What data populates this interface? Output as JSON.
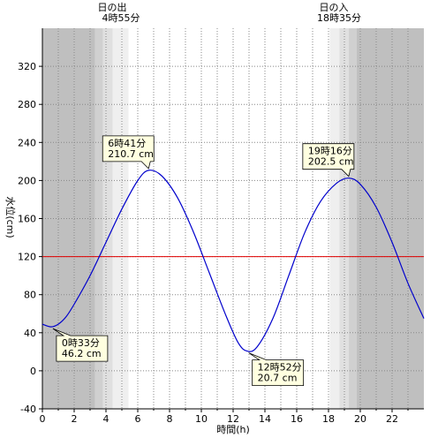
{
  "chart_data": {
    "type": "line",
    "ylabel": "水位(cm)",
    "xlabel": "時間(h)",
    "xlim": [
      0,
      24
    ],
    "ylim": [
      -40,
      360
    ],
    "x_ticks": [
      "0",
      "2",
      "4",
      "6",
      "8",
      "10",
      "12",
      "14",
      "16",
      "18",
      "20",
      "22"
    ],
    "y_ticks": [
      "-40",
      "0",
      "40",
      "80",
      "120",
      "160",
      "200",
      "240",
      "280",
      "320"
    ],
    "grid": true,
    "reference_line": {
      "value": 120,
      "color": "#e00000"
    },
    "series": [
      {
        "color": "#0000cc",
        "x": [
          0,
          0.55,
          1,
          1.5,
          2,
          3,
          4,
          5,
          6,
          6.68,
          7.5,
          8.5,
          9.5,
          10.5,
          11.5,
          12.3,
          12.87,
          13.5,
          14.5,
          15.5,
          16.5,
          17.5,
          18.5,
          19.27,
          20,
          21,
          22,
          23,
          24
        ],
        "y": [
          49,
          46.2,
          49,
          57,
          70,
          100,
          135,
          170,
          200,
          210.7,
          205,
          182,
          146,
          103,
          60,
          30,
          20.7,
          25,
          55,
          100,
          145,
          178,
          197,
          202.5,
          196,
          172,
          135,
          92,
          55
        ]
      }
    ],
    "sunrise": {
      "label": "日の出",
      "time": "4時55分",
      "hour": 4.92
    },
    "sunset": {
      "label": "日の入",
      "time": "18時35分",
      "hour": 18.58
    },
    "annotations": [
      {
        "time": "0時33分",
        "value": "46.2 cm",
        "x": 0.55,
        "y": 46.2,
        "side": "below"
      },
      {
        "time": "6時41分",
        "value": "210.7 cm",
        "x": 6.68,
        "y": 210.7,
        "side": "above"
      },
      {
        "time": "12時52分",
        "value": "20.7 cm",
        "x": 12.87,
        "y": 20.7,
        "side": "below"
      },
      {
        "time": "19時16分",
        "value": "202.5 cm",
        "x": 19.27,
        "y": 202.5,
        "side": "above"
      }
    ],
    "colors": {
      "night": "#bfbfbf",
      "twilight1": "#d0d0d0",
      "twilight2": "#e0e0e0",
      "twilight3": "#efefef",
      "callout_fill": "#ffffe0",
      "grid": "#888888"
    }
  }
}
